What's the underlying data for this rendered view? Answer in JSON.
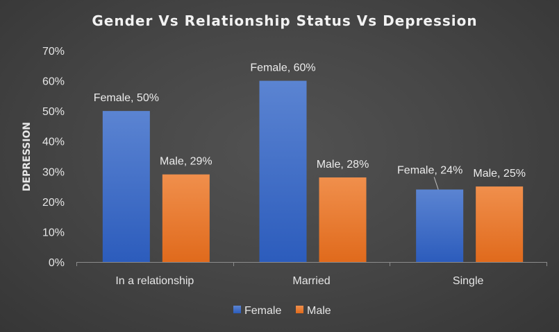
{
  "chart_data": {
    "type": "bar",
    "title": "Gender Vs Relationship Status Vs Depression",
    "xlabel": "",
    "ylabel": "DEPRESSION",
    "categories": [
      "In a relationship",
      "Married",
      "Single"
    ],
    "series": [
      {
        "name": "Female",
        "values": [
          50,
          60,
          24
        ],
        "labels": [
          "Female, 50%",
          "Female, 60%",
          "Female, 24%"
        ]
      },
      {
        "name": "Male",
        "values": [
          29,
          28,
          25
        ],
        "labels": [
          "Male, 29%",
          "Male, 28%",
          "Male, 25%"
        ]
      }
    ],
    "ylim": [
      0,
      70
    ],
    "yticks": [
      0,
      10,
      20,
      30,
      40,
      50,
      60,
      70
    ],
    "ytick_labels": [
      "0%",
      "10%",
      "20%",
      "30%",
      "40%",
      "50%",
      "60%",
      "70%"
    ],
    "grid": false,
    "legend": {
      "position": "bottom",
      "entries": [
        "Female",
        "Male"
      ]
    },
    "colors": {
      "Female_top": "#5b84d2",
      "Female_bottom": "#2c5cbc",
      "Male_top": "#f08f4c",
      "Male_bottom": "#e06a1c",
      "axis": "#8c8c8c",
      "leader": "#bfbfbf"
    }
  }
}
